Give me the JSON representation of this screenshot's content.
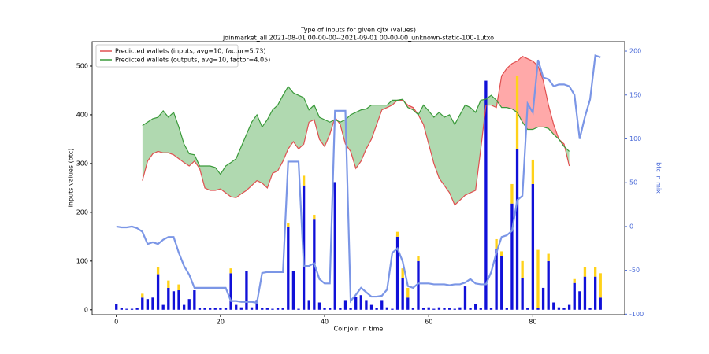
{
  "chart_data": {
    "type": "combo",
    "title": "Type of inputs for given cjtx (values)",
    "subtitle": "joinmarket_all 2021-08-01 00-00-00--2021-09-01 00-00-00_unknown-static-100-1utxo",
    "xlabel": "Coinjoin in time",
    "ylabel": "Inputs values (btc)",
    "y2label": "btc in mix",
    "legend": "upper left",
    "x": [
      0,
      1,
      2,
      3,
      4,
      5,
      6,
      7,
      8,
      9,
      10,
      11,
      12,
      13,
      14,
      15,
      16,
      17,
      18,
      19,
      20,
      21,
      22,
      23,
      24,
      25,
      26,
      27,
      28,
      29,
      30,
      31,
      32,
      33,
      34,
      35,
      36,
      37,
      38,
      39,
      40,
      41,
      42,
      43,
      44,
      45,
      46,
      47,
      48,
      49,
      50,
      51,
      52,
      53,
      54,
      55,
      56,
      57,
      58,
      59,
      60,
      61,
      62,
      63,
      64,
      65,
      66,
      67,
      68,
      69,
      70,
      71,
      72,
      73,
      74,
      75,
      76,
      77,
      78,
      79,
      80,
      81,
      82,
      83,
      84,
      85,
      86,
      87,
      88,
      89,
      90,
      91,
      92,
      93
    ],
    "xlim": [
      -4.65,
      97.65
    ],
    "xticks": [
      0,
      20,
      40,
      60,
      80
    ],
    "ylim": [
      -10,
      550
    ],
    "yticks": [
      0,
      100,
      200,
      300,
      400,
      500
    ],
    "y2lim": [
      -100.6,
      210.8
    ],
    "y2ticks": [
      -100,
      -50,
      0,
      50,
      100,
      150,
      200
    ],
    "series": [
      {
        "name": "Predicted wallets (inputs, avg=10, factor=5.73)",
        "type": "line",
        "color": "#e05050",
        "fill": "#ff7070",
        "values": [
          null,
          null,
          null,
          null,
          null,
          265,
          305,
          320,
          325,
          322,
          322,
          318,
          310,
          302,
          295,
          305,
          290,
          250,
          245,
          245,
          248,
          240,
          232,
          230,
          238,
          245,
          255,
          265,
          260,
          250,
          280,
          285,
          305,
          330,
          345,
          330,
          340,
          385,
          390,
          350,
          335,
          360,
          395,
          380,
          340,
          325,
          290,
          305,
          330,
          350,
          380,
          410,
          415,
          420,
          430,
          430,
          420,
          415,
          400,
          380,
          340,
          300,
          270,
          255,
          240,
          215,
          225,
          235,
          240,
          245,
          330,
          420,
          420,
          415,
          480,
          495,
          505,
          510,
          520,
          515,
          510,
          500,
          470,
          420,
          380,
          350,
          340,
          295,
          null,
          null,
          null,
          null,
          null,
          null
        ]
      },
      {
        "name": "Predicted wallets (outputs, avg=10, factor=4.05)",
        "type": "line",
        "color": "#3a9a3a",
        "fill": "#7cc07c",
        "values": [
          null,
          null,
          null,
          null,
          null,
          378,
          385,
          392,
          395,
          408,
          395,
          405,
          375,
          340,
          320,
          318,
          295,
          295,
          295,
          292,
          278,
          295,
          302,
          310,
          335,
          360,
          385,
          400,
          375,
          390,
          410,
          420,
          440,
          458,
          445,
          440,
          435,
          410,
          420,
          395,
          390,
          385,
          390,
          385,
          390,
          400,
          405,
          410,
          412,
          420,
          420,
          420,
          420,
          430,
          430,
          432,
          415,
          410,
          400,
          420,
          408,
          395,
          405,
          395,
          400,
          380,
          400,
          420,
          415,
          405,
          430,
          432,
          440,
          430,
          415,
          415,
          412,
          405,
          385,
          370,
          370,
          375,
          375,
          372,
          360,
          350,
          335,
          325,
          null,
          null,
          null,
          null,
          null,
          null
        ]
      },
      {
        "type": "line",
        "axis": "y2",
        "color": "#7b96e6",
        "values": [
          0,
          -1,
          -1,
          0,
          -2,
          -6,
          -20,
          -18,
          -20,
          -15,
          -12,
          -12,
          -30,
          -45,
          -55,
          -70,
          -70,
          -70,
          -70,
          -70,
          -70,
          -70,
          -85,
          -85,
          -86,
          -86,
          -86,
          -87,
          -53,
          -52,
          -52,
          -52,
          -52,
          74,
          74,
          74,
          -45,
          -45,
          -42,
          -60,
          -65,
          -65,
          132,
          132,
          132,
          -85,
          -78,
          -70,
          -75,
          -80,
          -80,
          -79,
          -72,
          -30,
          -25,
          -40,
          -68,
          -70,
          -65,
          -65,
          -65,
          -66,
          -66,
          -66,
          -67,
          -66,
          -66,
          -64,
          -60,
          -65,
          -66,
          -66,
          -52,
          -30,
          -12,
          -10,
          -5,
          30,
          35,
          140,
          130,
          190,
          170,
          168,
          160,
          162,
          162,
          160,
          150,
          100,
          125,
          145,
          195,
          193
        ]
      },
      {
        "type": "bar",
        "color": "#1010d8",
        "values": [
          12,
          3,
          2,
          2,
          3,
          25,
          22,
          25,
          73,
          10,
          45,
          38,
          40,
          10,
          22,
          40,
          3,
          3,
          3,
          3,
          3,
          3,
          75,
          10,
          5,
          80,
          5,
          20,
          3,
          3,
          2,
          3,
          4,
          170,
          80,
          2,
          255,
          20,
          185,
          15,
          3,
          3,
          262,
          3,
          20,
          3,
          27,
          30,
          20,
          10,
          3,
          20,
          5,
          2,
          150,
          65,
          25,
          3,
          100,
          3,
          5,
          2,
          5,
          3,
          3,
          2,
          5,
          48,
          3,
          12,
          3,
          470,
          3,
          125,
          110,
          3,
          218,
          330,
          65,
          3,
          258,
          3,
          45,
          100,
          15,
          5,
          3,
          10,
          55,
          38,
          68,
          3,
          68,
          25
        ]
      },
      {
        "type": "bar",
        "stack": true,
        "color": "#ffd21a",
        "values": [
          0,
          0,
          0,
          0,
          0,
          8,
          0,
          0,
          15,
          0,
          15,
          0,
          12,
          0,
          0,
          0,
          0,
          0,
          0,
          0,
          0,
          0,
          10,
          0,
          0,
          0,
          0,
          0,
          0,
          0,
          0,
          0,
          0,
          8,
          0,
          0,
          20,
          0,
          10,
          0,
          0,
          0,
          0,
          0,
          0,
          0,
          0,
          0,
          0,
          0,
          0,
          0,
          0,
          0,
          10,
          20,
          20,
          0,
          10,
          0,
          0,
          0,
          0,
          0,
          0,
          0,
          0,
          0,
          0,
          0,
          0,
          0,
          0,
          20,
          10,
          0,
          40,
          150,
          35,
          0,
          50,
          120,
          0,
          15,
          0,
          0,
          0,
          0,
          8,
          0,
          20,
          0,
          20,
          50
        ]
      }
    ]
  }
}
